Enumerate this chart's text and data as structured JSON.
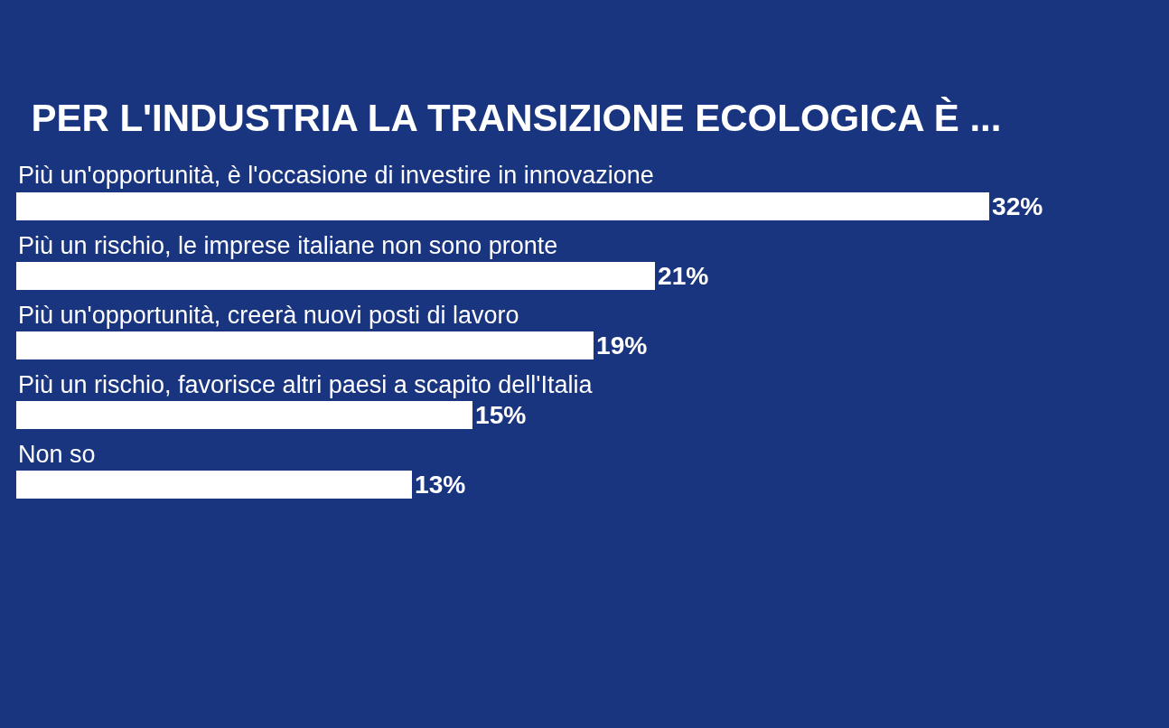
{
  "chart_data": {
    "type": "bar",
    "orientation": "horizontal",
    "title": "PER L'INDUSTRIA LA TRANSIZIONE ECOLOGICA È ...",
    "categories": [
      "Più un'opportunità, è l'occasione di investire in innovazione",
      "Più un rischio, le imprese italiane non sono pronte",
      "Più un'opportunità, creerà nuovi posti di lavoro",
      "Più un rischio, favorisce altri paesi a scapito dell'Italia",
      "Non so"
    ],
    "values": [
      32,
      21,
      19,
      15,
      13
    ],
    "value_labels": [
      "32%",
      "21%",
      "19%",
      "15%",
      "13%"
    ],
    "color": "#ffffff"
  }
}
